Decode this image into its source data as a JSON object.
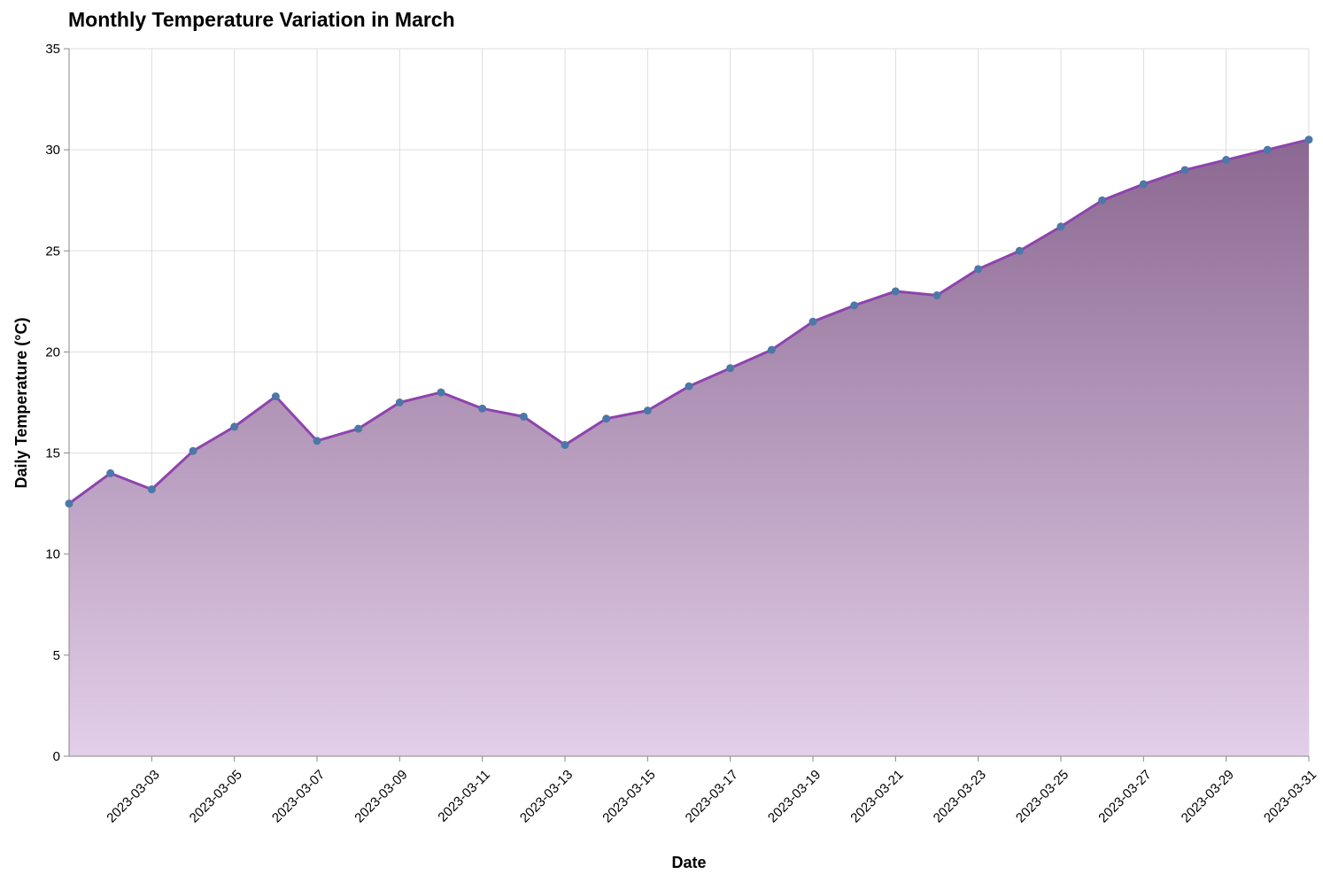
{
  "chart_data": {
    "type": "area",
    "title": "Monthly Temperature Variation in March",
    "xlabel": "Date",
    "ylabel": "Daily Temperature (°C)",
    "ylim": [
      0,
      35
    ],
    "xlim": [
      "2023-03-01",
      "2023-03-31"
    ],
    "yticks": [
      0,
      5,
      10,
      15,
      20,
      25,
      30,
      35
    ],
    "xticks": [
      "2023-03-03",
      "2023-03-05",
      "2023-03-07",
      "2023-03-09",
      "2023-03-11",
      "2023-03-13",
      "2023-03-15",
      "2023-03-17",
      "2023-03-19",
      "2023-03-21",
      "2023-03-23",
      "2023-03-25",
      "2023-03-27",
      "2023-03-29",
      "2023-03-31"
    ],
    "grid": true,
    "x": [
      "2023-03-01",
      "2023-03-02",
      "2023-03-03",
      "2023-03-04",
      "2023-03-05",
      "2023-03-06",
      "2023-03-07",
      "2023-03-08",
      "2023-03-09",
      "2023-03-10",
      "2023-03-11",
      "2023-03-12",
      "2023-03-13",
      "2023-03-14",
      "2023-03-15",
      "2023-03-16",
      "2023-03-17",
      "2023-03-18",
      "2023-03-19",
      "2023-03-20",
      "2023-03-21",
      "2023-03-22",
      "2023-03-23",
      "2023-03-24",
      "2023-03-25",
      "2023-03-26",
      "2023-03-27",
      "2023-03-28",
      "2023-03-29",
      "2023-03-30",
      "2023-03-31"
    ],
    "values": [
      12.5,
      14.0,
      13.2,
      15.1,
      16.3,
      17.8,
      15.6,
      16.2,
      17.5,
      18.0,
      17.2,
      16.8,
      15.4,
      16.7,
      17.1,
      18.3,
      19.2,
      20.1,
      21.5,
      22.3,
      23.0,
      22.8,
      24.1,
      25.0,
      26.2,
      27.5,
      28.3,
      29.0,
      29.5,
      30.0,
      30.5
    ],
    "colors": {
      "line": "#8e44ad",
      "point": "#4c78a8",
      "area_top": "#8b6891",
      "area_bottom": "#e3cfe9"
    }
  }
}
